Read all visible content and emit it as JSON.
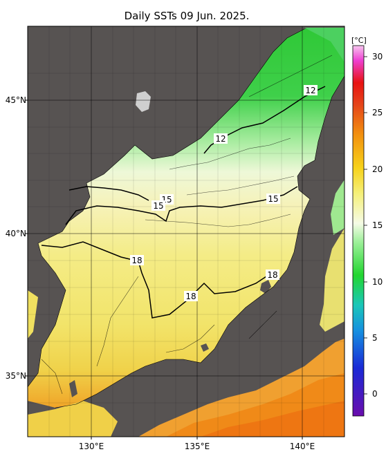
{
  "title": "Daily SSTs 09 Jun. 2025.",
  "colorbar": {
    "unit": "[°C]",
    "ticks": [
      "30",
      "25",
      "20",
      "15",
      "10",
      "5",
      "0"
    ],
    "scale_colors": [
      "#6a0dad",
      "#1a2ad6",
      "#1690e0",
      "#1ac7b8",
      "#22d630",
      "#9ef09a",
      "#f5fbe6",
      "#f5f07a",
      "#f7d21a",
      "#f2900f",
      "#e5451a",
      "#e81212",
      "#ee40d2",
      "#f7c6ef"
    ]
  },
  "lat_labels": [
    "45°N",
    "40°N",
    "35°N"
  ],
  "lon_labels": [
    "130°E",
    "135°E",
    "140°E"
  ],
  "contour_labels": [
    {
      "text": "12",
      "id": "a"
    },
    {
      "text": "12",
      "id": "b"
    },
    {
      "text": "15",
      "id": "c"
    },
    {
      "text": "15",
      "id": "d"
    },
    {
      "text": "15",
      "id": "e"
    },
    {
      "text": "18",
      "id": "f"
    },
    {
      "text": "18",
      "id": "g"
    },
    {
      "text": "18",
      "id": "h"
    }
  ],
  "colors": {
    "land": "#575352",
    "ocean_warm": "#f0e47a",
    "ocean_cool": "#3fd04a"
  }
}
